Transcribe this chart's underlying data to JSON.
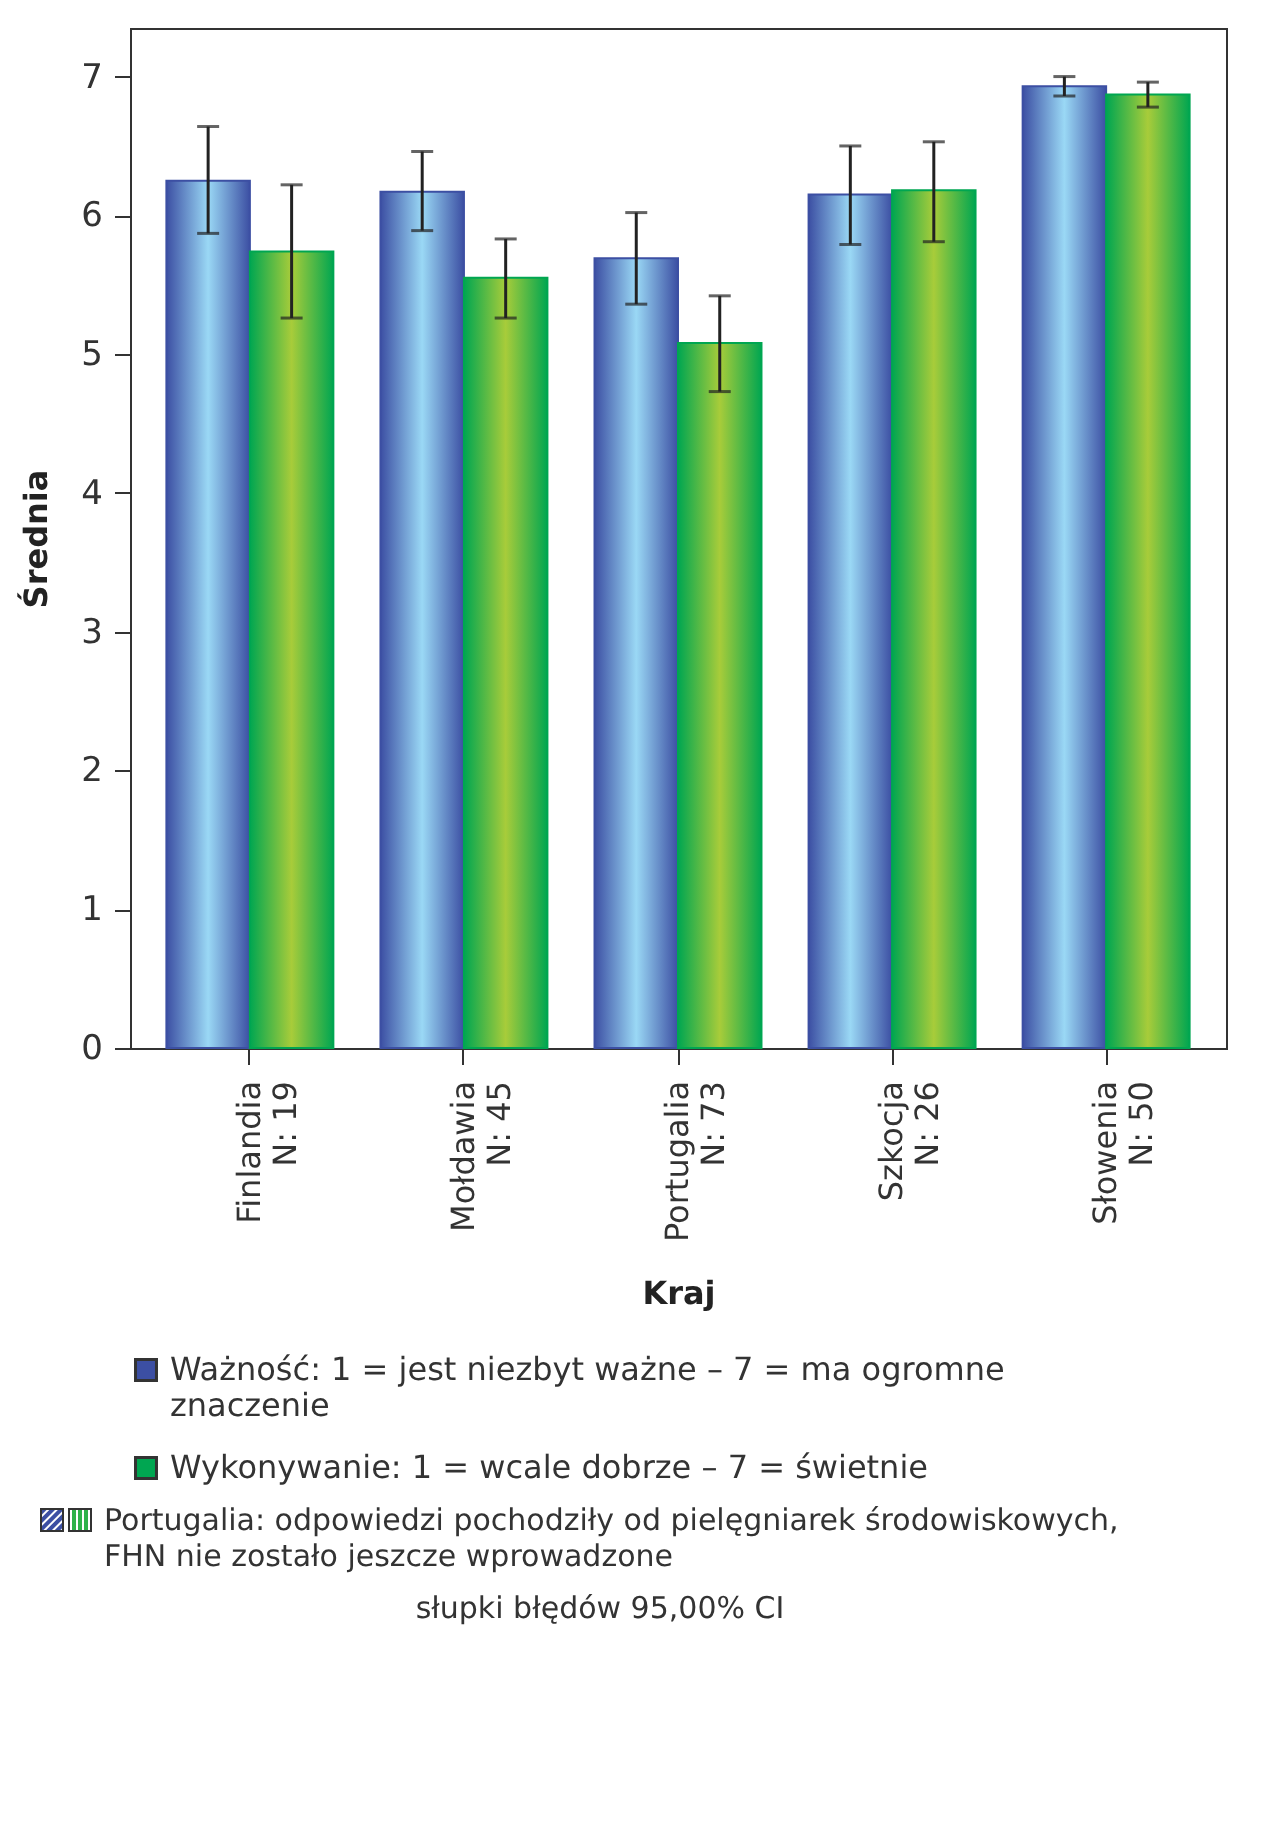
{
  "chart_data": {
    "type": "bar",
    "xlabel": "Kraj",
    "ylabel": "Średnia",
    "categories": [
      "Finlandia\nN: 19",
      "Mołdawia\nN: 45",
      "Portugalia\nN: 73",
      "Szkocja\nN: 26",
      "Słowenia\nN: 50"
    ],
    "series": [
      {
        "name": "Ważność: 1 = jest niezbyt ważne – 7 = ma ogromne znaczenie",
        "color": "#3c4fa3",
        "values": [
          6.25,
          6.17,
          5.69,
          6.15,
          6.93
        ],
        "errors": [
          [
            5.87,
            6.64
          ],
          [
            5.89,
            6.46
          ],
          [
            5.36,
            6.02
          ],
          [
            5.79,
            6.5
          ],
          [
            6.86,
            7.0
          ]
        ]
      },
      {
        "name": "Wykonywanie: 1 = wcale dobrze – 7 = świetnie",
        "color": "#00a651",
        "values": [
          5.74,
          5.55,
          5.08,
          6.18,
          6.87
        ],
        "errors": [
          [
            5.26,
            6.22
          ],
          [
            5.26,
            5.83
          ],
          [
            4.73,
            5.42
          ],
          [
            5.81,
            6.53
          ],
          [
            6.78,
            6.96
          ]
        ]
      }
    ],
    "ylim": [
      0,
      7.35
    ],
    "yticks": [
      0,
      1,
      2,
      3,
      4,
      5,
      6,
      7
    ],
    "grid": false,
    "legend": "bottom",
    "annotations": [
      "Portugalia: odpowiedzi pochodziły od pielęgniarek środowiskowych, FHN nie zostało jeszcze wprowadzone",
      "słupki błędów 95,00% CI"
    ]
  }
}
